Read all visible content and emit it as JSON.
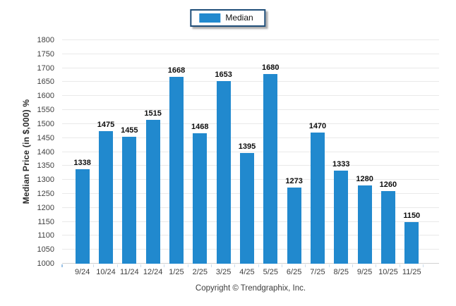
{
  "chart_data": {
    "type": "bar",
    "title": "",
    "xlabel": "",
    "ylabel": "Median Price (in $,000) %",
    "categories": [
      "9/24",
      "10/24",
      "11/24",
      "12/24",
      "1/25",
      "2/25",
      "3/25",
      "4/25",
      "5/25",
      "6/25",
      "7/25",
      "8/25",
      "9/25",
      "10/25",
      "11/25"
    ],
    "series": [
      {
        "name": "Median",
        "values": [
          1338,
          1475,
          1455,
          1515,
          1668,
          1468,
          1653,
          1395,
          1680,
          1273,
          1470,
          1333,
          1280,
          1260,
          1150
        ]
      }
    ],
    "ylim": [
      1000,
      1800
    ],
    "ytick_step": 50,
    "grid": true,
    "legend_position": "top-center",
    "bar_color": "#2189CE"
  },
  "legend": {
    "items": [
      {
        "label": "Median",
        "color": "#2189CE"
      }
    ]
  },
  "footer": {
    "copyright": "Copyright © Trendgraphix, Inc."
  }
}
